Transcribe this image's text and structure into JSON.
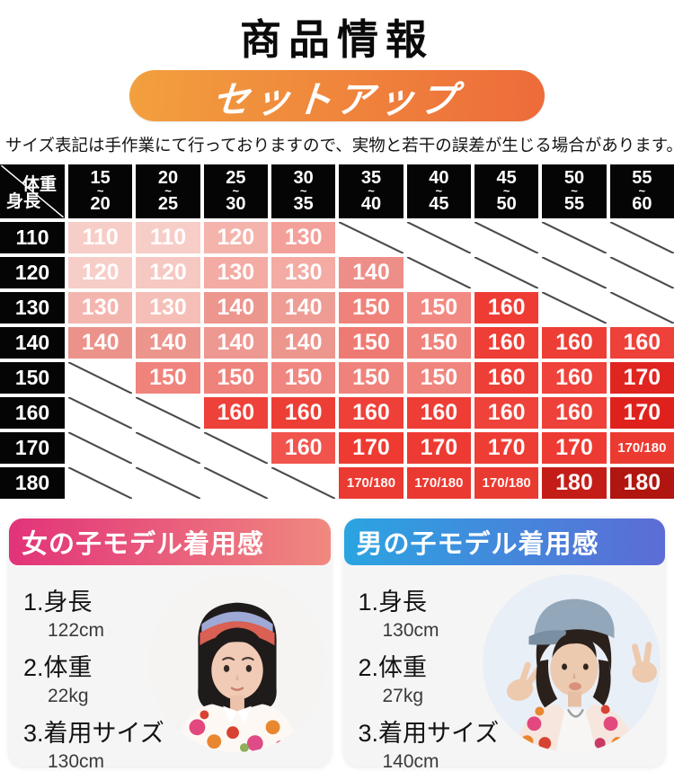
{
  "page": {
    "title": "商品情報",
    "banner_label": "セットアップ",
    "banner_color_from": "#f2a03e",
    "banner_color_to": "#ed6b3a",
    "note": "サイズ表記は手作業にて行っておりますので、実物と若干の誤差が生じる場合があります。"
  },
  "size_table": {
    "corner": {
      "top_label": "体重",
      "bottom_label": "身長"
    },
    "tilde": "~",
    "weight_columns": [
      {
        "min": "15",
        "max": "20"
      },
      {
        "min": "20",
        "max": "25"
      },
      {
        "min": "25",
        "max": "30"
      },
      {
        "min": "30",
        "max": "35"
      },
      {
        "min": "35",
        "max": "40"
      },
      {
        "min": "40",
        "max": "45"
      },
      {
        "min": "45",
        "max": "50"
      },
      {
        "min": "50",
        "max": "55"
      },
      {
        "min": "55",
        "max": "60"
      }
    ],
    "rows": [
      {
        "height": "110",
        "cells": [
          {
            "size": "110",
            "color": "#f7cdc8"
          },
          {
            "size": "110",
            "color": "#f7cdc8"
          },
          {
            "size": "120",
            "color": "#f4b3ab"
          },
          {
            "size": "130",
            "color": "#f2a099"
          },
          null,
          null,
          null,
          null,
          null
        ]
      },
      {
        "height": "120",
        "cells": [
          {
            "size": "120",
            "color": "#f7cdc8"
          },
          {
            "size": "120",
            "color": "#f6c8c2"
          },
          {
            "size": "130",
            "color": "#f3aba3"
          },
          {
            "size": "130",
            "color": "#f3aba3"
          },
          {
            "size": "140",
            "color": "#ee8e88"
          },
          null,
          null,
          null,
          null
        ]
      },
      {
        "height": "130",
        "cells": [
          {
            "size": "130",
            "color": "#f3b6af"
          },
          {
            "size": "130",
            "color": "#f5bfb8"
          },
          {
            "size": "140",
            "color": "#ec968e"
          },
          {
            "size": "140",
            "color": "#ee9d95"
          },
          {
            "size": "150",
            "color": "#ef837b"
          },
          {
            "size": "150",
            "color": "#f18a83"
          },
          {
            "size": "160",
            "color": "#ee3c34"
          },
          null,
          null
        ]
      },
      {
        "height": "140",
        "cells": [
          {
            "size": "140",
            "color": "#eb938b"
          },
          {
            "size": "140",
            "color": "#ec958d"
          },
          {
            "size": "140",
            "color": "#ed9890"
          },
          {
            "size": "140",
            "color": "#ec968e"
          },
          {
            "size": "150",
            "color": "#ee7b73"
          },
          {
            "size": "150",
            "color": "#ef827a"
          },
          {
            "size": "160",
            "color": "#ee3e36"
          },
          {
            "size": "160",
            "color": "#ed3e36"
          },
          {
            "size": "160",
            "color": "#ee4139"
          }
        ]
      },
      {
        "height": "150",
        "cells": [
          null,
          {
            "size": "150",
            "color": "#f0837c"
          },
          {
            "size": "150",
            "color": "#ef827b"
          },
          {
            "size": "150",
            "color": "#f08680"
          },
          {
            "size": "150",
            "color": "#ef837c"
          },
          {
            "size": "150",
            "color": "#f0857e"
          },
          {
            "size": "160",
            "color": "#ed3f37"
          },
          {
            "size": "160",
            "color": "#ee423a"
          },
          {
            "size": "170",
            "color": "#e02420"
          }
        ]
      },
      {
        "height": "160",
        "cells": [
          null,
          null,
          {
            "size": "160",
            "color": "#ed4139"
          },
          {
            "size": "160",
            "color": "#ed3e36"
          },
          {
            "size": "160",
            "color": "#ee4039"
          },
          {
            "size": "160",
            "color": "#ed3d35"
          },
          {
            "size": "160",
            "color": "#ee423a"
          },
          {
            "size": "160",
            "color": "#ed4139"
          },
          {
            "size": "170",
            "color": "#df211d"
          }
        ]
      },
      {
        "height": "170",
        "cells": [
          null,
          null,
          null,
          {
            "size": "160",
            "color": "#f0544d"
          },
          {
            "size": "170",
            "color": "#ee3a31"
          },
          {
            "size": "170",
            "color": "#ed3b33"
          },
          {
            "size": "170",
            "color": "#ee3d34"
          },
          {
            "size": "170",
            "color": "#ed3a32"
          },
          {
            "size": "170/180",
            "color": "#ec3a31"
          }
        ]
      },
      {
        "height": "180",
        "cells": [
          null,
          null,
          null,
          null,
          {
            "size": "170/180",
            "color": "#ea3a31"
          },
          {
            "size": "170/180",
            "color": "#e93930"
          },
          {
            "size": "170/180",
            "color": "#ea3b32"
          },
          {
            "size": "180",
            "color": "#c41d18"
          },
          {
            "size": "180",
            "color": "#b01510"
          }
        ]
      }
    ]
  },
  "models": [
    {
      "title": "女の子モデル着用感",
      "header_color_from": "#e23379",
      "header_color_to": "#f0897f",
      "items": [
        {
          "label": "1.身長",
          "value": "122cm"
        },
        {
          "label": "2.体重",
          "value": "22kg"
        },
        {
          "label": "3.着用サイズ",
          "value": "130cm"
        }
      ]
    },
    {
      "title": "男の子モデル着用感",
      "header_color_from": "#2ba4e1",
      "header_color_to": "#5c6cd6",
      "items": [
        {
          "label": "1.身長",
          "value": "130cm"
        },
        {
          "label": "2.体重",
          "value": "27kg"
        },
        {
          "label": "3.着用サイズ",
          "value": "140cm"
        }
      ]
    }
  ]
}
